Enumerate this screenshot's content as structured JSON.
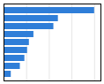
{
  "chart_data": {
    "type": "bar",
    "orientation": "horizontal",
    "categories": [
      null,
      null,
      null,
      null,
      null,
      null,
      null,
      null,
      null
    ],
    "values": [
      100,
      60,
      55,
      33,
      28,
      26,
      23,
      18,
      8
    ],
    "color": "#2f7ed8",
    "xlim": [
      0,
      107
    ],
    "xticks": [
      25,
      50,
      75,
      100
    ],
    "grid": true,
    "tick_labels": false
  }
}
